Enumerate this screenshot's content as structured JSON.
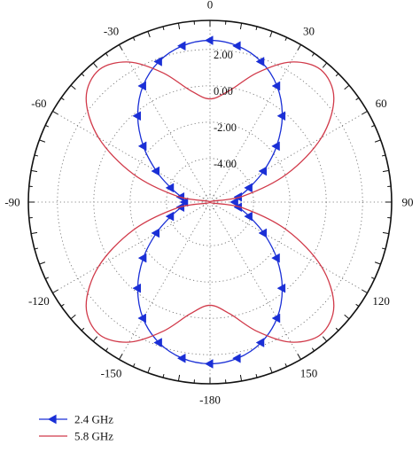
{
  "chart_data": {
    "type": "polar-line",
    "angle_labels": [
      "0",
      "30",
      "60",
      "90",
      "120",
      "150",
      "-180",
      "-150",
      "-120",
      "-90",
      "-60",
      "-30"
    ],
    "angle_values": [
      0,
      30,
      60,
      90,
      120,
      150,
      180,
      210,
      240,
      270,
      300,
      330
    ],
    "radial_tick_labels": [
      "2.00",
      "0.00",
      "-2.00",
      "-4.00"
    ],
    "radial_tick_values": [
      2,
      0,
      -2,
      -4
    ],
    "grid": true,
    "legend": {
      "placement": "bottom-left"
    },
    "series": [
      {
        "name": "2.4 GHz",
        "color": "#1a2fd6",
        "marker": "triangle-left",
        "theta": [
          0,
          10,
          20,
          30,
          40,
          50,
          60,
          70,
          80,
          90,
          100,
          110,
          120,
          130,
          140,
          150,
          160,
          170,
          180,
          190,
          200,
          210,
          220,
          230,
          240,
          250,
          260,
          270,
          280,
          290,
          300,
          310,
          320,
          330,
          340,
          350
        ],
        "r": [
          2.5,
          2.33,
          1.83,
          0.98,
          -0.21,
          -1.61,
          -2.99,
          -4.1,
          -4.79,
          -5.02,
          -4.79,
          -4.1,
          -2.99,
          -1.61,
          -0.21,
          0.98,
          1.83,
          2.33,
          2.5,
          2.33,
          1.83,
          0.98,
          -0.21,
          -1.61,
          -2.99,
          -4.1,
          -4.79,
          -5.02,
          -4.79,
          -4.1,
          -2.99,
          -1.61,
          -0.21,
          0.98,
          1.83,
          2.33
        ]
      },
      {
        "name": "5.8 GHz",
        "color": "#d13a4a",
        "marker": "none",
        "theta": [
          0,
          10,
          20,
          30,
          40,
          50,
          60,
          70,
          80,
          90,
          100,
          110,
          120,
          130,
          140,
          150,
          160,
          170,
          180,
          190,
          200,
          210,
          220,
          230,
          240,
          250,
          260,
          270,
          280,
          290,
          300,
          310,
          320,
          330,
          340,
          350
        ],
        "r": [
          -0.72,
          -0.16,
          1.17,
          2.5,
          3.1,
          2.5,
          0.68,
          -1.91,
          -4.58,
          -6.4,
          -4.58,
          -1.91,
          0.68,
          2.5,
          3.1,
          2.5,
          1.17,
          -0.16,
          -0.72,
          -0.16,
          1.17,
          2.5,
          3.1,
          2.5,
          0.68,
          -1.91,
          -4.58,
          -6.4,
          -4.58,
          -1.91,
          0.68,
          2.5,
          3.1,
          2.5,
          1.17,
          -0.16
        ]
      }
    ],
    "rlim": [
      -6.4,
      3.6
    ]
  }
}
